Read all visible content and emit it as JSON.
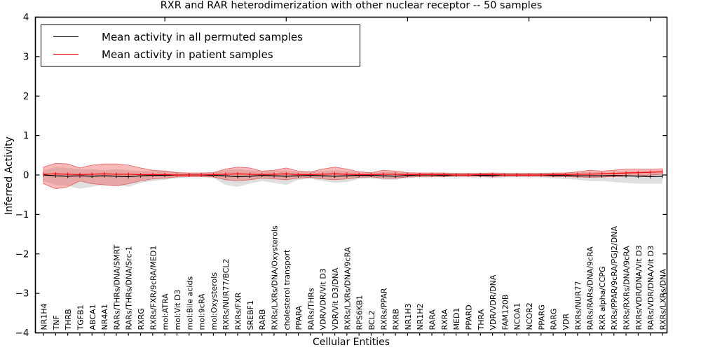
{
  "figure": {
    "background": "#ffffff",
    "accent_red": "#ff0000",
    "band_red": "#f05050",
    "band_gray": "#b8b8b8"
  },
  "chart_data": {
    "type": "line",
    "title": "RXR and RAR heterodimerization with other nuclear receptor -- 50 samples",
    "xlabel": "Cellular Entities",
    "ylabel": "Inferred Activity",
    "ylim": [
      -4,
      4
    ],
    "yticks": [
      4,
      3,
      2,
      1,
      0,
      -1,
      -2,
      -3,
      -4
    ],
    "grid": false,
    "legend_position": "upper left",
    "categories": [
      "NR1H4",
      "TNF",
      "THRB",
      "TGFB1",
      "ABCA1",
      "NR4A1",
      "RARs/THRs/DNA/SMRT",
      "RARs/THRs/DNA/Src-1",
      "RXRG",
      "RXRs/FXR/9cRA/MED1",
      "mol:ATRA",
      "mol:Vit D3",
      "mol:Bile acids",
      "mol:9cRA",
      "mol:Oxysterols",
      "RXRs/NUR77/BCL2",
      "RXRs/FXR",
      "SREBF1",
      "RARB",
      "RXRs/LXRs/DNA/Oxysterols",
      "cholesterol transport",
      "PPARA",
      "RARs/THRs",
      "VDR/VDR/Vit D3",
      "VDR/Vit D3/DNA",
      "RXRs/LXRs/DNA/9cRA",
      "RPS6KB1",
      "BCL2",
      "RXRs/PPAR",
      "RXRB",
      "NR1H3",
      "NR1H2",
      "RARA",
      "RXRA",
      "MED1",
      "PPARD",
      "THRA",
      "VDR/VDR/DNA",
      "FAM120B",
      "NCOA1",
      "NCOR2",
      "PPARG",
      "RARG",
      "VDR",
      "RXRs/NUR77",
      "RARs/RARs/DNA/9cRA",
      "RXR alpha/CCPG",
      "RXRs/PPAR/9cRA/PGJ2/DNA",
      "RXRs/RXRs/DNA/9cRA",
      "RXRs/VDR/DNA/Vit D3",
      "RARs/VDR/DNA/Vit D3",
      "RXRs/LXRs/DNA"
    ],
    "series": [
      {
        "name": "Mean activity in all permuted samples",
        "color": "#000000",
        "values": [
          0,
          -0.02,
          -0.03,
          -0.02,
          -0.03,
          -0.02,
          -0.03,
          -0.04,
          -0.02,
          -0.01,
          -0.01,
          0,
          0,
          0,
          -0.01,
          -0.02,
          -0.04,
          -0.03,
          -0.01,
          -0.02,
          -0.03,
          -0.02,
          -0.01,
          -0.02,
          -0.03,
          -0.02,
          -0.01,
          -0.01,
          -0.02,
          -0.03,
          -0.01,
          0,
          0,
          -0.01,
          0,
          0,
          -0.01,
          -0.01,
          0,
          0,
          0,
          0,
          -0.01,
          -0.01,
          -0.02,
          -0.02,
          -0.02,
          -0.01,
          -0.02,
          -0.03,
          -0.04,
          -0.03
        ]
      },
      {
        "name": "Mean activity in patient samples",
        "color": "#ff0000",
        "values": [
          0.02,
          0.03,
          0.02,
          0.01,
          0.02,
          0.03,
          0.02,
          0.02,
          0.01,
          0.01,
          0.01,
          0,
          0,
          0,
          0.01,
          0.02,
          0.03,
          0.02,
          0.01,
          0.02,
          0.03,
          0.01,
          0.01,
          0.02,
          0.03,
          0.02,
          0.01,
          0.01,
          0.02,
          0.02,
          0.01,
          0.01,
          0.01,
          0.01,
          0,
          0,
          0.01,
          0.01,
          0,
          0,
          0,
          0,
          0.01,
          0.01,
          0.02,
          0.02,
          0.03,
          0.04,
          0.05,
          0.06,
          0.07,
          0.08
        ]
      }
    ],
    "bands": [
      {
        "name": "permuted-samples-range",
        "color": "#b8b8b8",
        "opacity": 0.45,
        "edge": "none",
        "upper": [
          0.12,
          0.2,
          0.18,
          0.15,
          0.15,
          0.12,
          0.15,
          0.12,
          0.1,
          0.1,
          0.12,
          0.08,
          0.06,
          0.06,
          0.08,
          0.12,
          0.15,
          0.12,
          0.1,
          0.1,
          0.12,
          0.08,
          0.08,
          0.1,
          0.12,
          0.1,
          0.08,
          0.06,
          0.08,
          0.08,
          0.06,
          0.06,
          0.06,
          0.06,
          0.05,
          0.05,
          0.05,
          0.06,
          0.05,
          0.05,
          0.05,
          0.05,
          0.05,
          0.06,
          0.06,
          0.08,
          0.08,
          0.08,
          0.1,
          0.1,
          0.1,
          0.1
        ],
        "lower": [
          -0.15,
          -0.25,
          -0.28,
          -0.35,
          -0.3,
          -0.25,
          -0.25,
          -0.3,
          -0.2,
          -0.15,
          -0.12,
          -0.08,
          -0.06,
          -0.06,
          -0.08,
          -0.25,
          -0.3,
          -0.22,
          -0.15,
          -0.2,
          -0.25,
          -0.12,
          -0.1,
          -0.15,
          -0.2,
          -0.18,
          -0.1,
          -0.08,
          -0.12,
          -0.12,
          -0.08,
          -0.06,
          -0.06,
          -0.06,
          -0.06,
          -0.06,
          -0.06,
          -0.08,
          -0.06,
          -0.06,
          -0.06,
          -0.06,
          -0.08,
          -0.1,
          -0.12,
          -0.15,
          -0.15,
          -0.18,
          -0.2,
          -0.22,
          -0.22,
          -0.22
        ]
      },
      {
        "name": "patient-samples-range",
        "color": "#f05050",
        "opacity": 0.4,
        "edge": "#d84848",
        "upper": [
          0.2,
          0.3,
          0.28,
          0.18,
          0.25,
          0.28,
          0.28,
          0.25,
          0.18,
          0.12,
          0.1,
          0.06,
          0.05,
          0.05,
          0.06,
          0.15,
          0.2,
          0.18,
          0.1,
          0.12,
          0.18,
          0.1,
          0.08,
          0.15,
          0.2,
          0.15,
          0.08,
          0.06,
          0.12,
          0.1,
          0.06,
          0.05,
          0.05,
          0.05,
          0.04,
          0.04,
          0.04,
          0.05,
          0.04,
          0.04,
          0.04,
          0.04,
          0.05,
          0.05,
          0.08,
          0.12,
          0.1,
          0.12,
          0.15,
          0.15,
          0.15,
          0.16
        ],
        "lower": [
          -0.22,
          -0.35,
          -0.3,
          -0.15,
          -0.22,
          -0.25,
          -0.28,
          -0.22,
          -0.15,
          -0.1,
          -0.08,
          -0.05,
          -0.04,
          -0.04,
          -0.05,
          -0.12,
          -0.15,
          -0.12,
          -0.08,
          -0.1,
          -0.12,
          -0.08,
          -0.06,
          -0.1,
          -0.12,
          -0.1,
          -0.06,
          -0.05,
          -0.08,
          -0.08,
          -0.05,
          -0.04,
          -0.04,
          -0.04,
          -0.03,
          -0.03,
          -0.03,
          -0.04,
          -0.03,
          -0.03,
          -0.03,
          -0.03,
          -0.04,
          -0.04,
          -0.05,
          -0.06,
          -0.05,
          -0.04,
          -0.03,
          -0.02,
          0.0,
          0.02
        ]
      }
    ]
  }
}
